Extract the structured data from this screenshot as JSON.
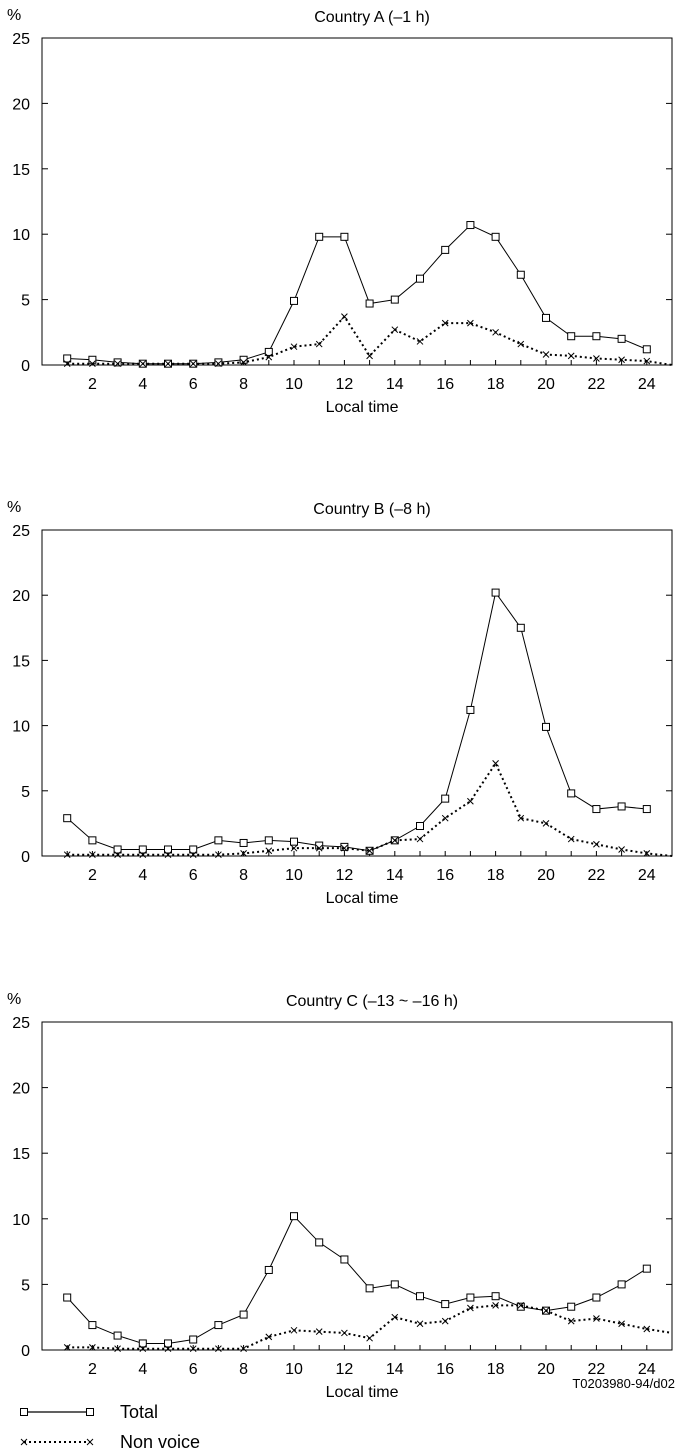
{
  "chart_data": [
    {
      "type": "line",
      "title": "Country A (–1 h)",
      "ylabel": "%",
      "xlabel": "Local time",
      "ylim": [
        0,
        25
      ],
      "xlim": [
        0,
        25
      ],
      "yticks": [
        0,
        5,
        10,
        15,
        20,
        25
      ],
      "xticks": [
        2,
        4,
        6,
        8,
        10,
        12,
        14,
        16,
        18,
        20,
        22,
        24
      ],
      "grid": false,
      "series": [
        {
          "name": "Total",
          "marker": "square",
          "line": "solid",
          "x": [
            1,
            2,
            3,
            4,
            5,
            6,
            7,
            8,
            9,
            10,
            11,
            12,
            13,
            14,
            15,
            16,
            17,
            18,
            19,
            20,
            21,
            22,
            23,
            24
          ],
          "values": [
            0.5,
            0.4,
            0.2,
            0.1,
            0.1,
            0.1,
            0.2,
            0.4,
            1.0,
            4.9,
            9.8,
            9.8,
            4.7,
            5.0,
            6.6,
            8.8,
            10.7,
            9.8,
            6.9,
            3.6,
            2.2,
            2.2,
            2.0,
            1.2
          ]
        },
        {
          "name": "Non voice",
          "marker": "x",
          "line": "dotted",
          "x": [
            1,
            2,
            3,
            4,
            5,
            6,
            7,
            8,
            9,
            10,
            11,
            12,
            13,
            14,
            15,
            16,
            17,
            18,
            19,
            20,
            21,
            22,
            23,
            24,
            25
          ],
          "values": [
            0.1,
            0.1,
            0.1,
            0.1,
            0.1,
            0.1,
            0.1,
            0.2,
            0.6,
            1.4,
            1.6,
            3.7,
            0.7,
            2.7,
            1.8,
            3.2,
            3.2,
            2.5,
            1.6,
            0.8,
            0.7,
            0.5,
            0.4,
            0.3,
            0
          ]
        }
      ]
    },
    {
      "type": "line",
      "title": "Country B (–8 h)",
      "ylabel": "%",
      "xlabel": "Local time",
      "ylim": [
        0,
        25
      ],
      "xlim": [
        0,
        25
      ],
      "yticks": [
        0,
        5,
        10,
        15,
        20,
        25
      ],
      "xticks": [
        2,
        4,
        6,
        8,
        10,
        12,
        14,
        16,
        18,
        20,
        22,
        24
      ],
      "grid": false,
      "series": [
        {
          "name": "Total",
          "marker": "square",
          "line": "solid",
          "x": [
            1,
            2,
            3,
            4,
            5,
            6,
            7,
            8,
            9,
            10,
            11,
            12,
            13,
            14,
            15,
            16,
            17,
            18,
            19,
            20,
            21,
            22,
            23,
            24
          ],
          "values": [
            2.9,
            1.2,
            0.5,
            0.5,
            0.5,
            0.5,
            1.2,
            1.0,
            1.2,
            1.1,
            0.8,
            0.7,
            0.4,
            1.2,
            2.3,
            4.4,
            11.2,
            20.2,
            17.5,
            9.9,
            4.8,
            3.6,
            3.8,
            3.6
          ]
        },
        {
          "name": "Non voice",
          "marker": "x",
          "line": "dotted",
          "x": [
            1,
            2,
            3,
            4,
            5,
            6,
            7,
            8,
            9,
            10,
            11,
            12,
            13,
            14,
            15,
            16,
            17,
            18,
            19,
            20,
            21,
            22,
            23,
            24,
            25
          ],
          "values": [
            0.1,
            0.1,
            0.1,
            0.1,
            0.1,
            0.1,
            0.1,
            0.2,
            0.4,
            0.6,
            0.6,
            0.6,
            0.4,
            1.2,
            1.3,
            2.9,
            4.2,
            7.1,
            2.9,
            2.5,
            1.3,
            0.9,
            0.5,
            0.2,
            0
          ]
        }
      ]
    },
    {
      "type": "line",
      "title": "Country C (–13 ~ –16 h)",
      "ylabel": "%",
      "xlabel": "Local time",
      "ylim": [
        0,
        25
      ],
      "xlim": [
        0,
        25
      ],
      "yticks": [
        0,
        5,
        10,
        15,
        20,
        25
      ],
      "xticks": [
        2,
        4,
        6,
        8,
        10,
        12,
        14,
        16,
        18,
        20,
        22,
        24
      ],
      "grid": false,
      "series": [
        {
          "name": "Total",
          "marker": "square",
          "line": "solid",
          "x": [
            1,
            2,
            3,
            4,
            5,
            6,
            7,
            8,
            9,
            10,
            11,
            12,
            13,
            14,
            15,
            16,
            17,
            18,
            19,
            20,
            21,
            22,
            23,
            24
          ],
          "values": [
            4.0,
            1.9,
            1.1,
            0.5,
            0.5,
            0.8,
            1.9,
            2.7,
            6.1,
            10.2,
            8.2,
            6.9,
            4.7,
            5.0,
            4.1,
            3.5,
            4.0,
            4.1,
            3.3,
            3.0,
            3.3,
            4.0,
            5.0,
            6.2
          ]
        },
        {
          "name": "Non voice",
          "marker": "x",
          "line": "dotted",
          "x": [
            1,
            2,
            3,
            4,
            5,
            6,
            7,
            8,
            9,
            10,
            11,
            12,
            13,
            14,
            15,
            16,
            17,
            18,
            19,
            20,
            21,
            22,
            23,
            24,
            25
          ],
          "values": [
            0.2,
            0.2,
            0.1,
            0.1,
            0.1,
            0.1,
            0.1,
            0.1,
            1.0,
            1.5,
            1.4,
            1.3,
            0.9,
            2.5,
            2.0,
            2.2,
            3.2,
            3.4,
            3.4,
            3.0,
            2.2,
            2.4,
            2.0,
            1.6,
            1.3
          ]
        }
      ]
    }
  ],
  "figure_code": "T0203980-94/d02",
  "legend": [
    {
      "label": "Total",
      "marker": "square",
      "line": "solid"
    },
    {
      "label": "Non voice",
      "marker": "x",
      "line": "dotted"
    }
  ]
}
